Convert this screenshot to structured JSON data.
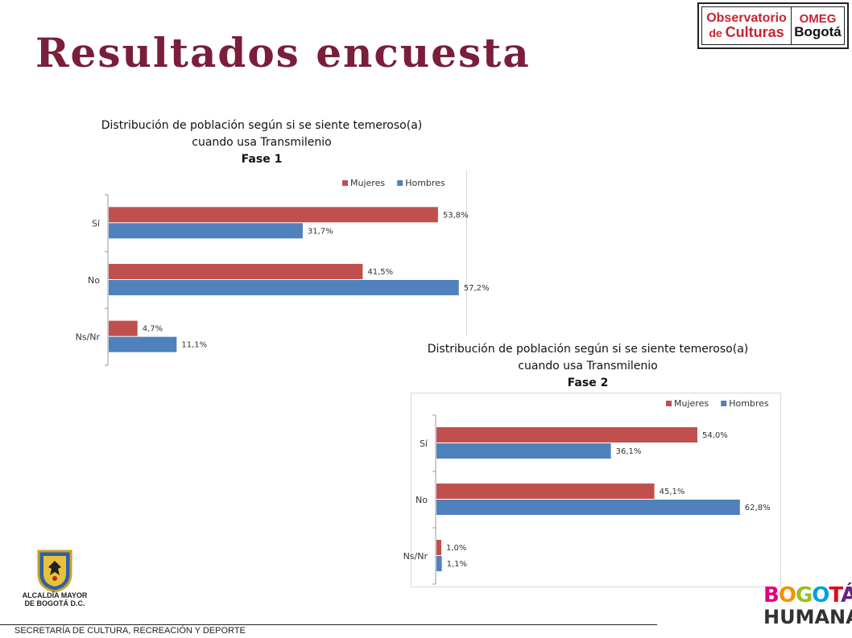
{
  "header": {
    "title": "Resultados encuesta"
  },
  "observatorio_logo": {
    "line1": "Observatorio",
    "line2a": "de ",
    "line2b": "Culturas",
    "right1": "OMEG",
    "right2": "Bogotá"
  },
  "alcaldia": {
    "line1": "ALCALDÍA MAYOR",
    "line2": "DE BOGOTÁ D.C."
  },
  "footer": {
    "text": "SECRETARÍA DE CULTURA, RECREACIÓN Y DEPORTE"
  },
  "bogota_humana": {
    "line1": "BOGOTÁ",
    "line2": "HUMANA"
  },
  "colors": {
    "mujeres": "#c0504d",
    "hombres": "#4f81bd",
    "title": "#7a1e3a"
  },
  "chart_data": [
    {
      "type": "bar",
      "orientation": "horizontal",
      "title_lines": [
        "Distribución de población según si se siente temeroso(a)",
        "cuando usa Transmilenio",
        "Fase 1"
      ],
      "categories": [
        "Sí",
        "No",
        "Ns/Nr"
      ],
      "series": [
        {
          "name": "Mujeres",
          "values": [
            53.8,
            41.5,
            4.7
          ],
          "labels": [
            "53,8%",
            "41,5%",
            "4,7%"
          ]
        },
        {
          "name": "Hombres",
          "values": [
            31.7,
            57.2,
            11.1
          ],
          "labels": [
            "31,7%",
            "57,2%",
            "11,1%"
          ]
        }
      ],
      "legend_position": "top-right",
      "grid": false
    },
    {
      "type": "bar",
      "orientation": "horizontal",
      "title_lines": [
        "Distribución de población según si se siente temeroso(a)",
        "cuando usa Transmilenio",
        "Fase 2"
      ],
      "categories": [
        "Sí",
        "No",
        "Ns/Nr"
      ],
      "series": [
        {
          "name": "Mujeres",
          "values": [
            54.0,
            45.1,
            1.0
          ],
          "labels": [
            "54,0%",
            "45,1%",
            "1,0%"
          ]
        },
        {
          "name": "Hombres",
          "values": [
            36.1,
            62.8,
            1.1
          ],
          "labels": [
            "36,1%",
            "62,8%",
            "1,1%"
          ]
        }
      ],
      "legend_position": "top-right",
      "grid": false
    }
  ]
}
